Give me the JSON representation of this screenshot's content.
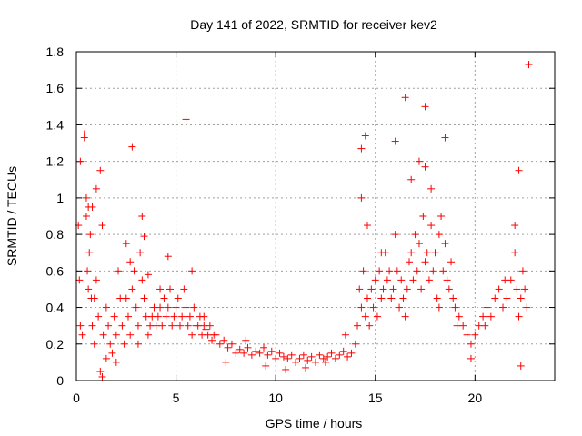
{
  "chart_data": {
    "type": "scatter",
    "title": "Day 141 of 2022, SRMTID for receiver kev2",
    "xlabel": "GPS time / hours",
    "ylabel": "SRMTID / TECUs",
    "xlim": [
      0,
      24
    ],
    "ylim": [
      0,
      1.8
    ],
    "xticks": [
      0,
      5,
      10,
      15,
      20
    ],
    "xtick_labels": [
      "0",
      "5",
      "10",
      "15",
      "20"
    ],
    "yticks": [
      0,
      0.2,
      0.4,
      0.6,
      0.8,
      1.0,
      1.2,
      1.4,
      1.6,
      1.8
    ],
    "ytick_labels": [
      "0",
      "0.2",
      "0.4",
      "0.6",
      "0.8",
      "1",
      "1.2",
      "1.4",
      "1.6",
      "1.8"
    ],
    "grid": true,
    "marker": "+",
    "series": [
      {
        "name": "kev2",
        "color": "#ff0000",
        "x": [
          0.1,
          0.15,
          0.2,
          0.3,
          0.4,
          0.5,
          0.55,
          0.6,
          0.65,
          0.7,
          0.75,
          0.8,
          0.9,
          1.0,
          1.1,
          1.2,
          1.3,
          1.35,
          1.5,
          1.6,
          1.7,
          1.8,
          1.9,
          2.0,
          2.1,
          2.2,
          2.3,
          2.4,
          2.5,
          2.6,
          2.7,
          2.8,
          2.9,
          3.0,
          3.1,
          3.2,
          3.3,
          3.4,
          3.5,
          3.6,
          3.7,
          3.8,
          3.9,
          4.0,
          4.1,
          4.2,
          4.3,
          4.4,
          4.5,
          4.6,
          4.7,
          4.8,
          4.9,
          5.0,
          5.1,
          5.2,
          5.3,
          5.4,
          5.5,
          5.6,
          5.7,
          5.8,
          5.9,
          6.0,
          6.1,
          6.2,
          6.3,
          6.4,
          6.5,
          6.6,
          6.7,
          6.8,
          6.9,
          7.0,
          7.2,
          7.4,
          7.6,
          7.8,
          8.0,
          8.2,
          8.4,
          8.6,
          8.8,
          9.0,
          9.2,
          9.4,
          9.6,
          9.8,
          10.0,
          10.2,
          10.4,
          10.6,
          10.8,
          11.0,
          11.2,
          11.4,
          11.6,
          11.8,
          12.0,
          12.2,
          12.4,
          12.6,
          12.8,
          13.0,
          13.2,
          13.4,
          13.6,
          13.8,
          14.0,
          14.1,
          14.2,
          14.3,
          14.4,
          14.5,
          14.6,
          14.7,
          14.8,
          14.9,
          15.0,
          15.1,
          15.2,
          15.3,
          15.4,
          15.5,
          15.6,
          15.7,
          15.8,
          15.9,
          16.0,
          16.1,
          16.2,
          16.3,
          16.4,
          16.5,
          16.6,
          16.7,
          16.8,
          16.9,
          17.0,
          17.1,
          17.2,
          17.3,
          17.4,
          17.5,
          17.6,
          17.7,
          17.8,
          17.9,
          18.0,
          18.1,
          18.2,
          18.3,
          18.4,
          18.5,
          18.6,
          18.7,
          18.8,
          18.9,
          19.0,
          19.2,
          19.4,
          19.6,
          19.8,
          20.0,
          20.2,
          20.4,
          20.6,
          20.8,
          21.0,
          21.2,
          21.4,
          21.6,
          21.8,
          22.0,
          22.1,
          22.2,
          22.3,
          22.4,
          22.5,
          22.6,
          22.7,
          0.2,
          0.4,
          0.5,
          0.8,
          1.0,
          1.2,
          1.3,
          2.0,
          2.5,
          2.8,
          3.3,
          3.4,
          4.6,
          5.5,
          14.3,
          14.3,
          14.5,
          16.0,
          16.5,
          17.5,
          17.5,
          17.8,
          18.5,
          22.2,
          22.3,
          0.6,
          0.9,
          1.5,
          2.7,
          3.1,
          3.6,
          4.2,
          5.8,
          6.4,
          7.5,
          8.5,
          9.5,
          10.5,
          11.5,
          12.5,
          13.5,
          14.6,
          15.3,
          16.8,
          17.2,
          18.2,
          19.1,
          19.8,
          20.5,
          21.5,
          22.0
        ],
        "y": [
          0.85,
          0.55,
          0.3,
          0.25,
          1.35,
          0.9,
          0.6,
          0.5,
          0.7,
          0.8,
          0.45,
          0.3,
          0.2,
          0.55,
          0.35,
          1.15,
          0.85,
          0.25,
          0.4,
          0.3,
          0.2,
          0.15,
          0.35,
          0.25,
          0.6,
          0.45,
          0.3,
          0.2,
          0.45,
          0.35,
          0.25,
          0.5,
          0.6,
          0.4,
          0.3,
          0.7,
          0.55,
          0.45,
          0.35,
          0.25,
          0.3,
          0.35,
          0.4,
          0.3,
          0.35,
          0.4,
          0.3,
          0.45,
          0.35,
          0.4,
          0.5,
          0.3,
          0.35,
          0.4,
          0.45,
          0.3,
          0.35,
          0.5,
          0.4,
          0.3,
          0.35,
          0.25,
          0.4,
          0.3,
          0.3,
          0.35,
          0.25,
          0.3,
          0.28,
          0.25,
          0.3,
          0.22,
          0.25,
          0.25,
          0.2,
          0.22,
          0.18,
          0.2,
          0.15,
          0.17,
          0.15,
          0.18,
          0.14,
          0.16,
          0.15,
          0.18,
          0.14,
          0.16,
          0.12,
          0.15,
          0.13,
          0.12,
          0.14,
          0.1,
          0.12,
          0.14,
          0.11,
          0.13,
          0.1,
          0.14,
          0.12,
          0.13,
          0.15,
          0.12,
          0.14,
          0.16,
          0.13,
          0.15,
          0.2,
          0.3,
          0.5,
          0.4,
          0.6,
          0.35,
          0.45,
          0.3,
          0.5,
          0.4,
          0.55,
          0.35,
          0.6,
          0.45,
          0.5,
          0.7,
          0.55,
          0.6,
          0.45,
          0.5,
          0.8,
          0.6,
          0.4,
          0.55,
          0.45,
          0.35,
          0.5,
          0.65,
          0.7,
          0.55,
          0.8,
          0.6,
          0.75,
          0.5,
          0.9,
          0.65,
          0.7,
          0.55,
          0.85,
          0.6,
          0.7,
          0.45,
          0.8,
          0.9,
          0.6,
          0.75,
          0.55,
          0.5,
          0.65,
          0.45,
          0.4,
          0.35,
          0.3,
          0.25,
          0.2,
          0.25,
          0.3,
          0.35,
          0.4,
          0.35,
          0.45,
          0.5,
          0.4,
          0.45,
          0.55,
          0.7,
          0.5,
          0.35,
          0.45,
          0.6,
          0.5,
          0.4,
          1.73,
          1.2,
          1.33,
          1.0,
          0.95,
          1.05,
          0.05,
          0.02,
          0.1,
          0.75,
          1.28,
          0.9,
          0.79,
          0.68,
          1.43,
          1.27,
          1.0,
          1.34,
          1.31,
          1.55,
          1.5,
          1.17,
          1.05,
          1.33,
          1.15,
          0.08,
          0.95,
          0.45,
          0.12,
          0.65,
          0.2,
          0.58,
          0.5,
          0.6,
          0.35,
          0.1,
          0.22,
          0.08,
          0.06,
          0.07,
          0.1,
          0.25,
          0.85,
          0.7,
          1.1,
          1.2,
          0.4,
          0.3,
          0.12,
          0.3,
          0.55,
          0.85
        ]
      }
    ]
  }
}
